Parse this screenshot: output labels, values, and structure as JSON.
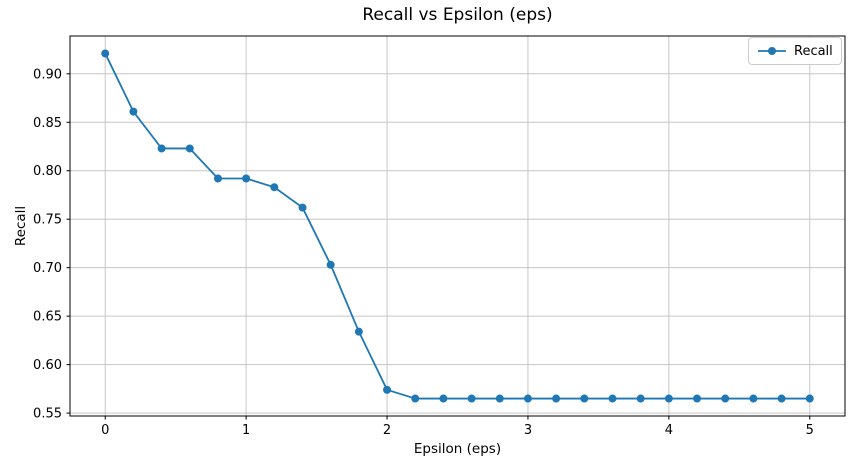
{
  "title": "Recall vs Epsilon (eps)",
  "colors": {
    "line": "#1f77b4",
    "grid": "#c6c6c6",
    "spine": "#000000",
    "text": "#000000",
    "background": "#ffffff",
    "legend_border": "#cccccc"
  },
  "legend": {
    "position": "upper-right",
    "entries": [
      "Recall"
    ]
  },
  "chart_data": {
    "type": "line",
    "title": "Recall vs Epsilon (eps)",
    "xlabel": "Epsilon (eps)",
    "ylabel": "Recall",
    "grid": true,
    "legend_position": "upper-right",
    "xlim": [
      -0.25,
      5.25
    ],
    "ylim": [
      0.547,
      0.939
    ],
    "xticks": [
      0,
      1,
      2,
      3,
      4,
      5
    ],
    "xtick_labels": [
      "0",
      "1",
      "2",
      "3",
      "4",
      "5"
    ],
    "yticks": [
      0.55,
      0.6,
      0.65,
      0.7,
      0.75,
      0.8,
      0.85,
      0.9
    ],
    "ytick_labels": [
      "0.55",
      "0.60",
      "0.65",
      "0.70",
      "0.75",
      "0.80",
      "0.85",
      "0.90"
    ],
    "series": [
      {
        "name": "Recall",
        "color": "#1f77b4",
        "marker": "circle",
        "x": [
          0.0,
          0.2,
          0.4,
          0.6,
          0.8,
          1.0,
          1.2,
          1.4,
          1.6,
          1.8,
          2.0,
          2.2,
          2.4,
          2.6,
          2.8,
          3.0,
          3.2,
          3.4,
          3.6,
          3.8,
          4.0,
          4.2,
          4.4,
          4.6,
          4.8,
          5.0
        ],
        "y": [
          0.921,
          0.861,
          0.823,
          0.823,
          0.792,
          0.792,
          0.783,
          0.762,
          0.703,
          0.634,
          0.574,
          0.565,
          0.565,
          0.565,
          0.565,
          0.565,
          0.565,
          0.565,
          0.565,
          0.565,
          0.565,
          0.565,
          0.565,
          0.565,
          0.565,
          0.565
        ]
      }
    ]
  }
}
